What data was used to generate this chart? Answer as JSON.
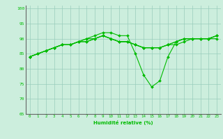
{
  "xlabel": "Humidité relative (%)",
  "background_color": "#cceedd",
  "grid_color": "#99ccbb",
  "line_color": "#00bb00",
  "xlim": [
    -0.5,
    23.5
  ],
  "ylim": [
    65,
    101
  ],
  "yticks": [
    65,
    70,
    75,
    80,
    85,
    90,
    95,
    100
  ],
  "xticks": [
    0,
    1,
    2,
    3,
    4,
    5,
    6,
    7,
    8,
    9,
    10,
    11,
    12,
    13,
    14,
    15,
    16,
    17,
    18,
    19,
    20,
    21,
    22,
    23
  ],
  "series": [
    [
      84,
      85,
      86,
      87,
      88,
      88,
      89,
      90,
      91,
      92,
      92,
      91,
      91,
      85,
      78,
      74,
      76,
      84,
      89,
      90,
      90,
      90,
      90,
      90
    ],
    [
      84,
      85,
      86,
      87,
      88,
      88,
      89,
      90,
      90,
      91,
      90,
      89,
      89,
      88,
      87,
      87,
      87,
      88,
      89,
      90,
      90,
      90,
      90,
      91
    ],
    [
      84,
      85,
      86,
      87,
      88,
      88,
      89,
      89,
      90,
      91,
      90,
      89,
      89,
      88,
      87,
      87,
      87,
      88,
      89,
      90,
      90,
      90,
      90,
      91
    ],
    [
      84,
      85,
      86,
      87,
      88,
      88,
      89,
      89,
      90,
      91,
      90,
      89,
      89,
      88,
      87,
      87,
      87,
      88,
      88,
      89,
      90,
      90,
      90,
      91
    ]
  ]
}
